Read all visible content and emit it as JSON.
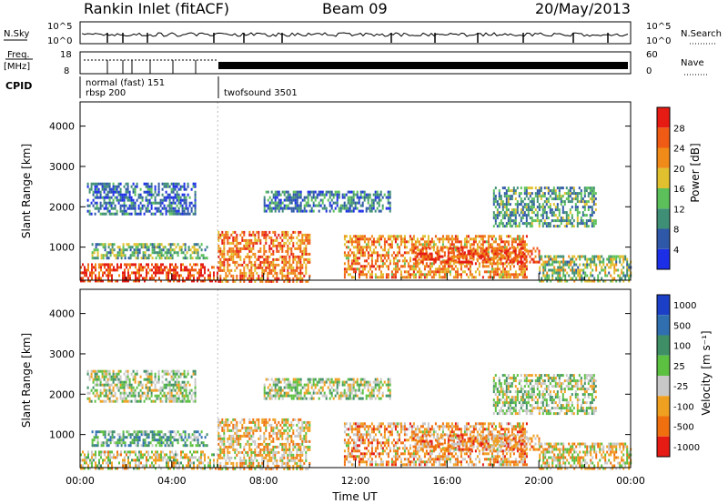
{
  "header": {
    "station": "Rankin Inlet (fitACF)",
    "beam": "Beam 09",
    "date": "20/May/2013"
  },
  "labels": {
    "nsky": "N.Sky",
    "nsearch": "N.Search",
    "freq_line1": "Freq.",
    "freq_line2": "[MHz]",
    "nave": "Nave",
    "cpid": "CPID",
    "nsky_top": "10^5",
    "nsky_bottom": "10^0",
    "nsearch_top": "10^5",
    "nsearch_bottom": "10^0",
    "freq_top": "18",
    "freq_bottom": "8",
    "nave_top": "60",
    "nave_bottom": "0",
    "cpid_modes": [
      "normal (fast) 151",
      "rbsp 200",
      "twofsound 3501"
    ]
  },
  "chart_data": [
    {
      "type": "heatmap",
      "name": "power",
      "xlabel": "",
      "ylabel": "Slant Range [km]",
      "xlim": [
        0,
        24
      ],
      "ylim": [
        180,
        4600
      ],
      "yticks": [
        1000,
        2000,
        3000,
        4000
      ],
      "colorbar": {
        "label": "Power [dB]",
        "ticks": [
          "4",
          "8",
          "12",
          "16",
          "20",
          "24",
          "28"
        ],
        "colors": [
          "#1c2fe6",
          "#2f58a8",
          "#3f8f76",
          "#5cc05a",
          "#e0c02e",
          "#f08a18",
          "#ef5a14",
          "#e51b14"
        ]
      },
      "echo_bands": [
        {
          "t0": 0.0,
          "t1": 6.0,
          "r0": 180,
          "r1": 600,
          "level": 0.85
        },
        {
          "t0": 0.5,
          "t1": 5.5,
          "r0": 700,
          "r1": 1100,
          "level": 0.4
        },
        {
          "t0": 0.3,
          "t1": 5.0,
          "r0": 1800,
          "r1": 2600,
          "level": 0.2
        },
        {
          "t0": 6.0,
          "t1": 10.0,
          "r0": 180,
          "r1": 1400,
          "level": 0.75
        },
        {
          "t0": 8.0,
          "t1": 13.5,
          "r0": 1900,
          "r1": 2400,
          "level": 0.25
        },
        {
          "t0": 11.5,
          "t1": 19.5,
          "r0": 250,
          "r1": 1300,
          "level": 0.7
        },
        {
          "t0": 14.5,
          "t1": 20.0,
          "r0": 600,
          "r1": 1000,
          "level": 0.85
        },
        {
          "t0": 18.0,
          "t1": 22.5,
          "r0": 1500,
          "r1": 2500,
          "level": 0.35
        },
        {
          "t0": 20.0,
          "t1": 24.0,
          "r0": 180,
          "r1": 800,
          "level": 0.45
        }
      ]
    },
    {
      "type": "heatmap",
      "name": "velocity",
      "xlabel": "Time UT",
      "ylabel": "Slant Range [km]",
      "xlim": [
        0,
        24
      ],
      "ylim": [
        180,
        4600
      ],
      "xticks": [
        "00:00",
        "04:00",
        "08:00",
        "12:00",
        "16:00",
        "20:00",
        "00:00"
      ],
      "yticks": [
        1000,
        2000,
        3000,
        4000
      ],
      "colorbar": {
        "label": "Velocity [m s⁻¹]",
        "ticks": [
          "1000",
          "500",
          "100",
          "25",
          "-25",
          "-100",
          "-500",
          "-1000"
        ],
        "colors": [
          "#1c3fc8",
          "#2f6fb0",
          "#3f8f66",
          "#5cc040",
          "#c8c8c8",
          "#f0a020",
          "#f07010",
          "#e51b14"
        ]
      },
      "echo_bands": [
        {
          "t0": 0.0,
          "t1": 6.0,
          "r0": 180,
          "r1": 600,
          "level": 0.55
        },
        {
          "t0": 0.5,
          "t1": 5.5,
          "r0": 700,
          "r1": 1100,
          "level": 0.35
        },
        {
          "t0": 0.3,
          "t1": 5.0,
          "r0": 1800,
          "r1": 2600,
          "level": 0.5
        },
        {
          "t0": 6.0,
          "t1": 10.0,
          "r0": 180,
          "r1": 1400,
          "level": 0.65
        },
        {
          "t0": 8.0,
          "t1": 13.5,
          "r0": 1900,
          "r1": 2400,
          "level": 0.5
        },
        {
          "t0": 11.5,
          "t1": 19.5,
          "r0": 250,
          "r1": 1300,
          "level": 0.7
        },
        {
          "t0": 14.5,
          "t1": 20.0,
          "r0": 600,
          "r1": 1000,
          "level": 0.72
        },
        {
          "t0": 18.0,
          "t1": 22.5,
          "r0": 1500,
          "r1": 2500,
          "level": 0.5
        },
        {
          "t0": 20.0,
          "t1": 24.0,
          "r0": 180,
          "r1": 800,
          "level": 0.6
        }
      ]
    }
  ]
}
